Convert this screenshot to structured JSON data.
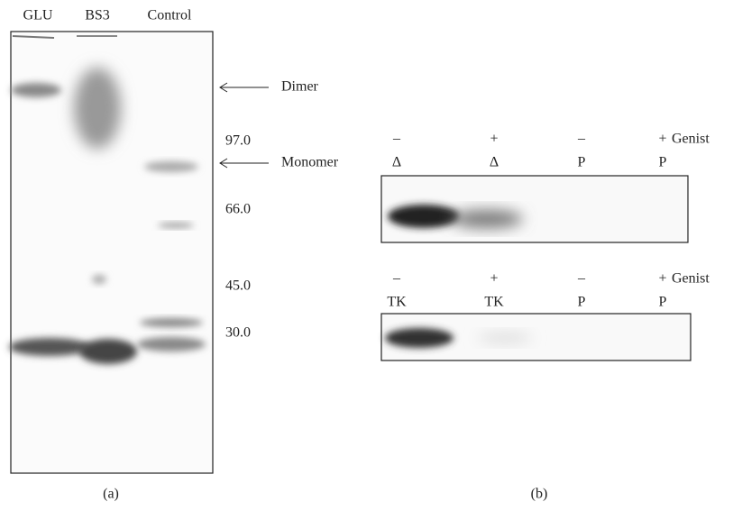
{
  "panel_a": {
    "lanes": [
      "GLU",
      "BS3",
      "Control"
    ],
    "markers": [
      "97.0",
      "66.0",
      "45.0",
      "30.0"
    ],
    "arrows": [
      "Dimer",
      "Monomer"
    ],
    "caption": "(a)"
  },
  "panel_b": {
    "blots": [
      {
        "signs": [
          "–",
          "+",
          "–",
          "+"
        ],
        "lanes": [
          "Δ",
          "Δ",
          "P",
          "P"
        ],
        "treatment": "Genist"
      },
      {
        "signs": [
          "–",
          "+",
          "–",
          "+"
        ],
        "lanes": [
          "TK",
          "TK",
          "P",
          "P"
        ],
        "treatment": "Genist"
      }
    ],
    "caption": "(b)"
  }
}
